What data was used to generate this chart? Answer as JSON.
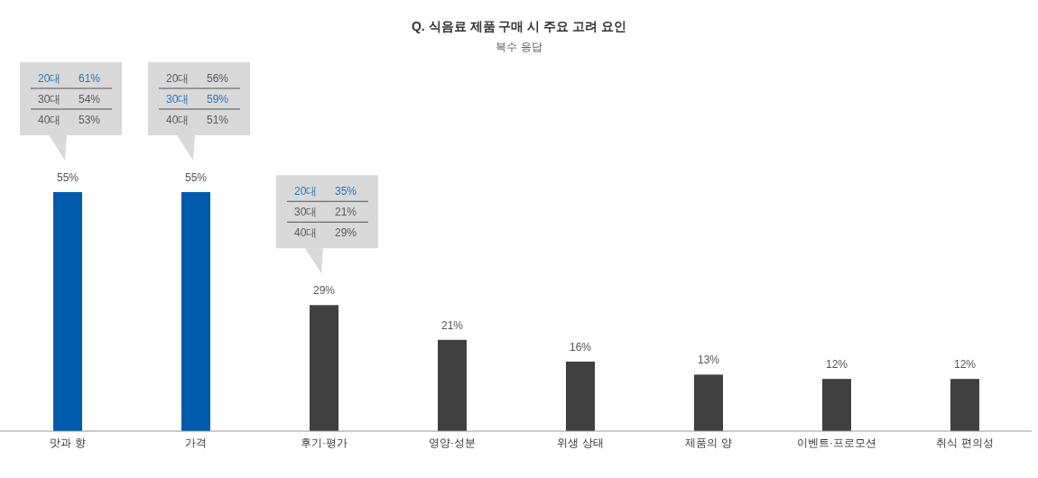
{
  "chart_data": {
    "type": "bar",
    "title": "Q. 식음료 제품 구매 시 주요 고려 요인",
    "subtitle": "복수 응답",
    "categories": [
      "맛과 향",
      "가격",
      "후기·평가",
      "영양·성분",
      "위생 상태",
      "제품의 양",
      "이벤트·프로모션",
      "취식 편의성"
    ],
    "values": [
      55,
      55,
      29,
      21,
      16,
      13,
      12,
      12
    ],
    "colors": [
      "#005bac",
      "#005bac",
      "#404040",
      "#404040",
      "#404040",
      "#404040",
      "#404040",
      "#404040"
    ],
    "value_labels": [
      "55%",
      "55%",
      "29%",
      "21%",
      "16%",
      "13%",
      "12%",
      "12%"
    ],
    "annotations": [
      "20대",
      "61%",
      "30대",
      "54%",
      "40대",
      "53%",
      "20대",
      "56%",
      "30대",
      "59%",
      "40대",
      "51%",
      "20대",
      "35%",
      "30대",
      "21%",
      "40대",
      "29%"
    ]
  }
}
